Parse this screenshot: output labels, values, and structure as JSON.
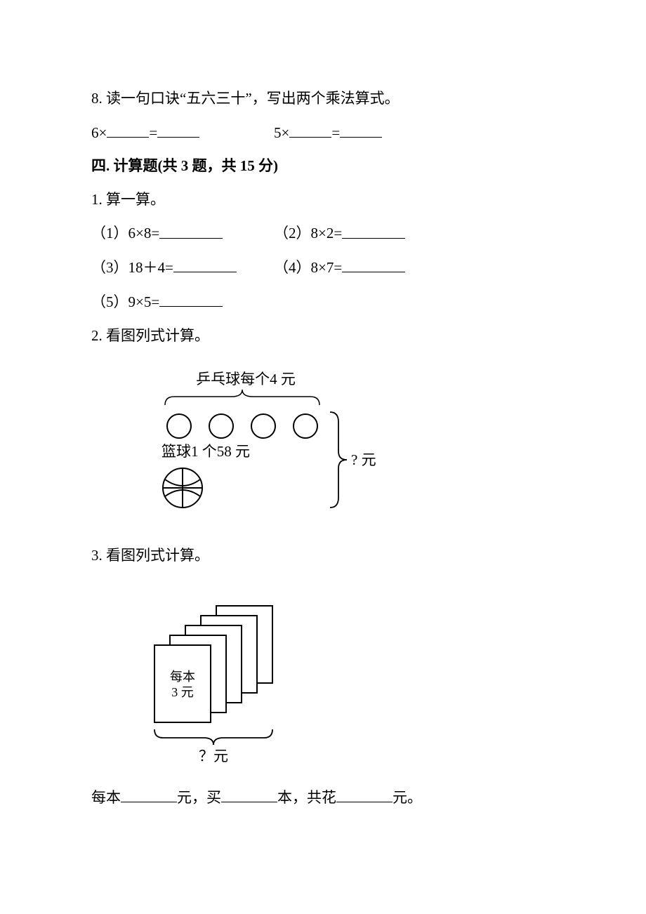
{
  "q8": {
    "text": "8. 读一句口诀“五六三十”，写出两个乘法算式。",
    "expr1a": "6×",
    "expr1b": "=",
    "expr2a": "5×",
    "expr2b": "="
  },
  "section4": {
    "heading": "四. 计算题(共 3 题，共 15 分)"
  },
  "p1": {
    "title": "1. 算一算。",
    "items": [
      {
        "label": "（1）6×8="
      },
      {
        "label": "（2）8×2="
      },
      {
        "label": "（3）18＋4="
      },
      {
        "label": "（4）8×7="
      },
      {
        "label": "（5）9×5="
      }
    ]
  },
  "p2": {
    "title": "2. 看图列式计算。",
    "fig": {
      "topLabel": "乒乓球每个4 元",
      "circleCount": 4,
      "leftLabel": "篮球1 个58 元",
      "rightLabel": "? 元",
      "colors": {
        "stroke": "#000000",
        "fill": "#ffffff"
      },
      "topLabel_fontsize": 21,
      "label_fontsize": 21
    }
  },
  "p3": {
    "title": "3. 看图列式计算。",
    "fig": {
      "bookCount": 5,
      "price_line1": "每本",
      "price_line2": "3 元",
      "bottomLabel": "？元",
      "colors": {
        "stroke": "#000000",
        "fill": "#ffffff"
      },
      "label_fontsize": 21
    },
    "sentence": {
      "s1": "每本",
      "s2": "元，买",
      "s3": "本，共花",
      "s4": "元。"
    }
  }
}
